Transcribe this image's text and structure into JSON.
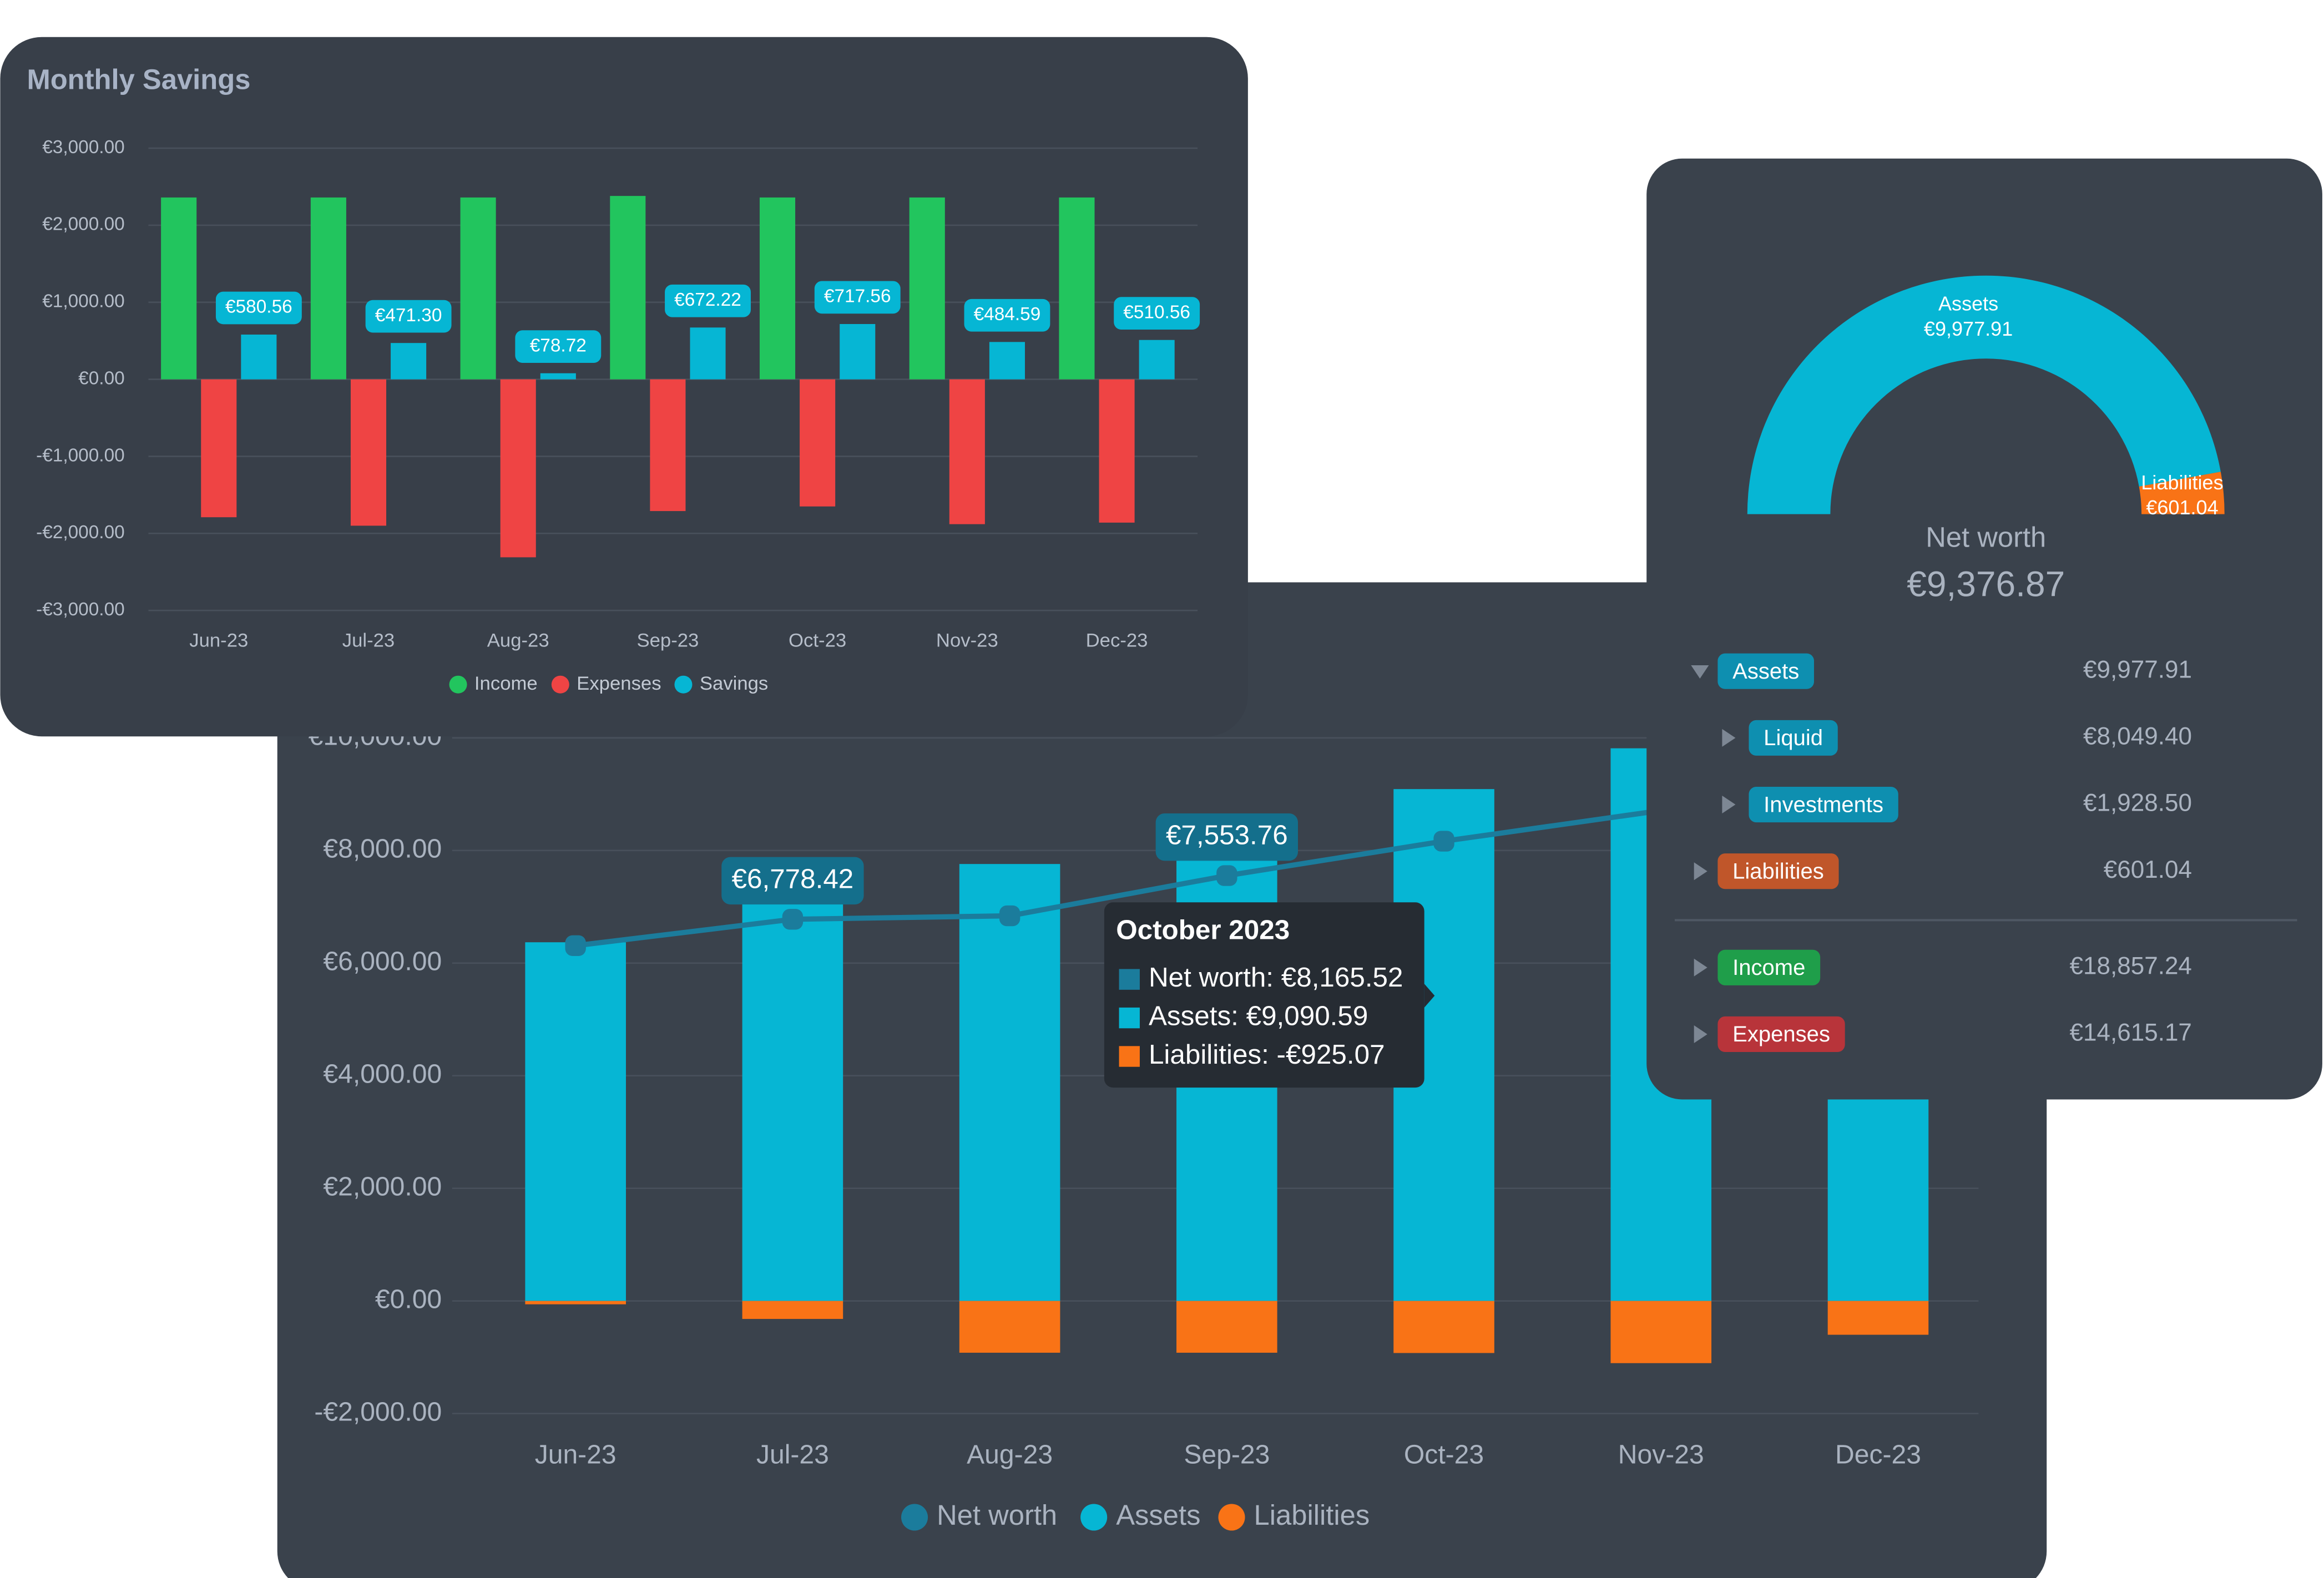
{
  "chart_data": [
    {
      "type": "bar",
      "title": "Monthly Savings",
      "categories": [
        "Jun-23",
        "Jul-23",
        "Aug-23",
        "Sep-23",
        "Oct-23",
        "Nov-23",
        "Dec-23"
      ],
      "series": [
        {
          "name": "Income",
          "color": "#22c55e",
          "values": [
            2360,
            2360,
            2360,
            2380,
            2360,
            2360,
            2360
          ]
        },
        {
          "name": "Expenses",
          "color": "#ef4444",
          "values": [
            -1790,
            -1900,
            -2310,
            -1710,
            -1650,
            -1880,
            -1860
          ]
        },
        {
          "name": "Savings",
          "color": "#06b6d4",
          "values": [
            580.56,
            471.3,
            78.72,
            672.22,
            717.56,
            484.59,
            510.56
          ],
          "value_labels": [
            "€580.56",
            "€471.30",
            "€78.72",
            "€672.22",
            "€717.56",
            "€484.59",
            "€510.56"
          ]
        }
      ],
      "ylim": [
        -3000,
        3000
      ],
      "yticks": [
        {
          "value": -3000,
          "label": "-€3,000.00"
        },
        {
          "value": -2000,
          "label": "-€2,000.00"
        },
        {
          "value": -1000,
          "label": "-€1,000.00"
        },
        {
          "value": 0,
          "label": "€0.00"
        },
        {
          "value": 1000,
          "label": "€1,000.00"
        },
        {
          "value": 2000,
          "label": "€2,000.00"
        },
        {
          "value": 3000,
          "label": "€3,000.00"
        }
      ],
      "grid": true,
      "legend": "bottom"
    },
    {
      "type": "bar",
      "categories": [
        "Jun-23",
        "Jul-23",
        "Aug-23",
        "Sep-23",
        "Oct-23",
        "Nov-23",
        "Dec-23"
      ],
      "series": [
        {
          "name": "Net worth",
          "type": "line",
          "color": "#1b7c9c",
          "values": [
            6310,
            6778.42,
            6840,
            7553.76,
            8165.52,
            8710,
            9376.87
          ],
          "value_labels": [
            null,
            "€6,778.42",
            null,
            "€7,553.76",
            null,
            null,
            null
          ]
        },
        {
          "name": "Assets",
          "color": "#06b6d4",
          "values": [
            6370,
            7090,
            7760,
            8475,
            9090.59,
            9815,
            9977.91
          ]
        },
        {
          "name": "Liabilities",
          "color": "#f97316",
          "values": [
            -60,
            -320,
            -920,
            -920,
            -925.07,
            -1105,
            -601.04
          ]
        }
      ],
      "ylim": [
        -2000,
        10000
      ],
      "yticks": [
        {
          "value": -2000,
          "label": "-€2,000.00"
        },
        {
          "value": 0,
          "label": "€0.00"
        },
        {
          "value": 2000,
          "label": "€2,000.00"
        },
        {
          "value": 4000,
          "label": "€4,000.00"
        },
        {
          "value": 6000,
          "label": "€6,000.00"
        },
        {
          "value": 8000,
          "label": "€8,000.00"
        },
        {
          "value": 10000,
          "label": "€10,000.00"
        }
      ],
      "grid": true,
      "legend": "bottom",
      "tooltip": {
        "title": "October 2023",
        "lines": [
          "Net worth: €8,165.52",
          "Assets: €9,090.59",
          "Liabilities: -€925.07"
        ]
      }
    },
    {
      "type": "pie",
      "shape": "half-donut",
      "categories": [
        "Assets",
        "Liabilities"
      ],
      "values": [
        9977.91,
        601.04
      ],
      "value_labels": [
        "€9,977.91",
        "€601.04"
      ],
      "colors": [
        "#06b6d4",
        "#f97316"
      ],
      "center_label": "Net worth",
      "center_value": "€9,376.87"
    }
  ],
  "tree": {
    "rows": [
      {
        "label": "Assets",
        "value": "€9,977.91",
        "level": 0,
        "expanded": true,
        "color": "#0e8fb0"
      },
      {
        "label": "Liquid",
        "value": "€8,049.40",
        "level": 1,
        "expanded": false,
        "color": "#0e8fb0"
      },
      {
        "label": "Investments",
        "value": "€1,928.50",
        "level": 1,
        "expanded": false,
        "color": "#0e8fb0"
      },
      {
        "label": "Liabilities",
        "value": "€601.04",
        "level": 0,
        "expanded": false,
        "color": "#c0562a"
      },
      {
        "label": "Income",
        "value": "€18,857.24",
        "level": 0,
        "expanded": false,
        "color": "#1f9e4a"
      },
      {
        "label": "Expenses",
        "value": "€14,615.17",
        "level": 0,
        "expanded": false,
        "color": "#b8343a"
      }
    ]
  }
}
